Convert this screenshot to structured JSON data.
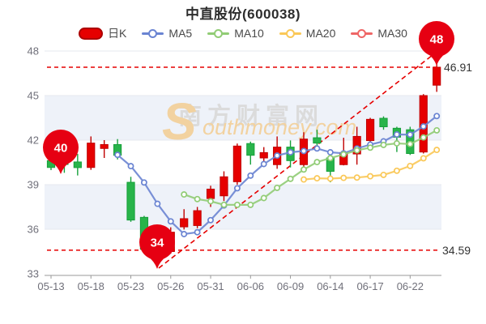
{
  "title": "中直股份(600038)",
  "legend": [
    {
      "label": "日K",
      "type": "candle",
      "color": "#e60000"
    },
    {
      "label": "MA5",
      "type": "line",
      "color": "#6a84d2"
    },
    {
      "label": "MA10",
      "type": "line",
      "color": "#91cc75"
    },
    {
      "label": "MA20",
      "type": "line",
      "color": "#fac858"
    },
    {
      "label": "MA30",
      "type": "line",
      "color": "#ee6666"
    }
  ],
  "watermark": {
    "text_cn": "南方财富网",
    "initial": "S",
    "rest": "outhmoney.com"
  },
  "annotations": {
    "high_badge": "48",
    "low_badge": "34",
    "start_badge": "40",
    "high_close_label": "46.91",
    "low_close_label": "34.59"
  },
  "chart_data": {
    "type": "candlestick",
    "ylim": [
      33,
      48
    ],
    "y_ticks": [
      33,
      36,
      39,
      42,
      45,
      48
    ],
    "shaded_bands": [
      [
        36,
        39
      ],
      [
        42,
        45
      ]
    ],
    "x_tick_every": 3,
    "x_tick_labels": [
      "05-13",
      "05-18",
      "05-23",
      "05-26",
      "05-31",
      "06-06",
      "06-09",
      "06-14",
      "06-17",
      "06-22"
    ],
    "candles": [
      {
        "date": "05-13",
        "open": 40.62,
        "close": 40.16,
        "low": 39.98,
        "high": 41.35
      },
      {
        "date": "05-16",
        "open": 40.9,
        "close": 40.36,
        "low": 39.8,
        "high": 41.0
      },
      {
        "date": "05-17",
        "open": 40.53,
        "close": 40.15,
        "low": 39.62,
        "high": 41.07
      },
      {
        "date": "05-18",
        "open": 40.16,
        "close": 41.8,
        "low": 40.0,
        "high": 42.25
      },
      {
        "date": "05-19",
        "open": 41.44,
        "close": 41.7,
        "low": 40.8,
        "high": 42.0
      },
      {
        "date": "05-20",
        "open": 41.7,
        "close": 40.98,
        "low": 40.7,
        "high": 42.07
      },
      {
        "date": "05-23",
        "open": 39.16,
        "close": 36.62,
        "low": 36.5,
        "high": 39.53
      },
      {
        "date": "05-24",
        "open": 36.8,
        "close": 34.65,
        "low": 34.5,
        "high": 36.9
      },
      {
        "date": "05-25",
        "open": 34.9,
        "close": 34.59,
        "low": 34.18,
        "high": 35.1
      },
      {
        "date": "05-26",
        "open": 34.5,
        "close": 35.8,
        "low": 34.35,
        "high": 36.13
      },
      {
        "date": "05-27",
        "open": 36.16,
        "close": 36.71,
        "low": 35.98,
        "high": 37.35
      },
      {
        "date": "05-30",
        "open": 36.25,
        "close": 37.25,
        "low": 36.07,
        "high": 37.5
      },
      {
        "date": "05-31",
        "open": 38.07,
        "close": 38.7,
        "low": 37.5,
        "high": 38.93
      },
      {
        "date": "06-01",
        "open": 38.25,
        "close": 39.53,
        "low": 37.9,
        "high": 39.9
      },
      {
        "date": "06-02",
        "open": 39.2,
        "close": 41.6,
        "low": 39.0,
        "high": 41.77
      },
      {
        "date": "06-06",
        "open": 41.77,
        "close": 40.98,
        "low": 40.35,
        "high": 41.9
      },
      {
        "date": "06-07",
        "open": 40.8,
        "close": 41.16,
        "low": 40.26,
        "high": 41.53
      },
      {
        "date": "06-08",
        "open": 40.35,
        "close": 41.53,
        "low": 40.07,
        "high": 42.25
      },
      {
        "date": "06-09",
        "open": 41.53,
        "close": 40.62,
        "low": 40.16,
        "high": 41.98
      },
      {
        "date": "06-10",
        "open": 40.35,
        "close": 42.07,
        "low": 40.2,
        "high": 42.53
      },
      {
        "date": "06-13",
        "open": 42.16,
        "close": 41.8,
        "low": 41.25,
        "high": 42.7
      },
      {
        "date": "06-14",
        "open": 40.8,
        "close": 39.9,
        "low": 39.16,
        "high": 41.16
      },
      {
        "date": "06-15",
        "open": 40.35,
        "close": 41.16,
        "low": 40.3,
        "high": 42.16
      },
      {
        "date": "06-16",
        "open": 41.07,
        "close": 42.25,
        "low": 40.35,
        "high": 42.9
      },
      {
        "date": "06-17",
        "open": 41.97,
        "close": 43.4,
        "low": 41.7,
        "high": 43.5
      },
      {
        "date": "06-20",
        "open": 43.47,
        "close": 42.9,
        "low": 42.7,
        "high": 43.6
      },
      {
        "date": "06-21",
        "open": 42.8,
        "close": 42.2,
        "low": 41.2,
        "high": 42.9
      },
      {
        "date": "06-22",
        "open": 42.7,
        "close": 41.1,
        "low": 41.0,
        "high": 42.9
      },
      {
        "date": "06-23",
        "open": 41.2,
        "close": 45.0,
        "low": 41.1,
        "high": 45.1
      },
      {
        "date": "06-24",
        "open": 45.7,
        "close": 46.91,
        "low": 45.25,
        "high": 48.0
      }
    ],
    "series": [
      {
        "name": "MA5",
        "start_index": 5,
        "values": [
          41.01,
          40.25,
          39.15,
          37.71,
          36.53,
          35.67,
          35.8,
          36.61,
          37.6,
          38.76,
          39.61,
          40.39,
          40.96,
          41.18,
          41.27,
          41.44,
          41.18,
          41.11,
          41.44,
          41.7,
          41.92,
          42.38,
          42.37,
          42.92,
          43.62
        ]
      },
      {
        "name": "MA10",
        "start_index": 10,
        "values": [
          38.34,
          38.03,
          37.88,
          37.65,
          37.64,
          37.64,
          38.1,
          38.79,
          39.39,
          40.02,
          40.52,
          40.79,
          41.04,
          41.31,
          41.49,
          41.68,
          41.78,
          41.74,
          42.18,
          42.66
        ]
      },
      {
        "name": "MA20",
        "start_index": 19,
        "values": [
          39.35,
          39.43,
          39.41,
          39.46,
          39.48,
          39.57,
          39.66,
          39.94,
          40.26,
          40.78,
          41.34
        ]
      },
      {
        "name": "MA30",
        "start_index": 29,
        "values": []
      }
    ],
    "ref_lines": {
      "high_close": 46.91,
      "low_close": 34.59
    },
    "trend_line": {
      "from_value": 34.18,
      "to_value": 48.0
    },
    "badges": [
      {
        "label": "40",
        "candle_index": 1,
        "anchor_value": 40.0
      },
      {
        "label": "34",
        "candle_index": 8,
        "anchor_value": 34.18
      },
      {
        "label": "48",
        "candle_index": 29,
        "anchor_value": 48.0
      }
    ],
    "colors": {
      "up": "#e60000",
      "up_border": "#c00000",
      "down": "#28b44a",
      "down_border": "#16a03a",
      "ma5": "#6a84d2",
      "ma10": "#91cc75",
      "ma20": "#fac858",
      "ma30": "#ee6666",
      "ref": "#e60000",
      "badge": "#e60012",
      "band": "#eef2f9",
      "grid": "#e6e8ef",
      "axis": "#999999",
      "tick_text": "#70707a",
      "label_text": "#333333",
      "watermark_cn": "#dbdbdb",
      "watermark_en": "#f2d2a0"
    }
  }
}
